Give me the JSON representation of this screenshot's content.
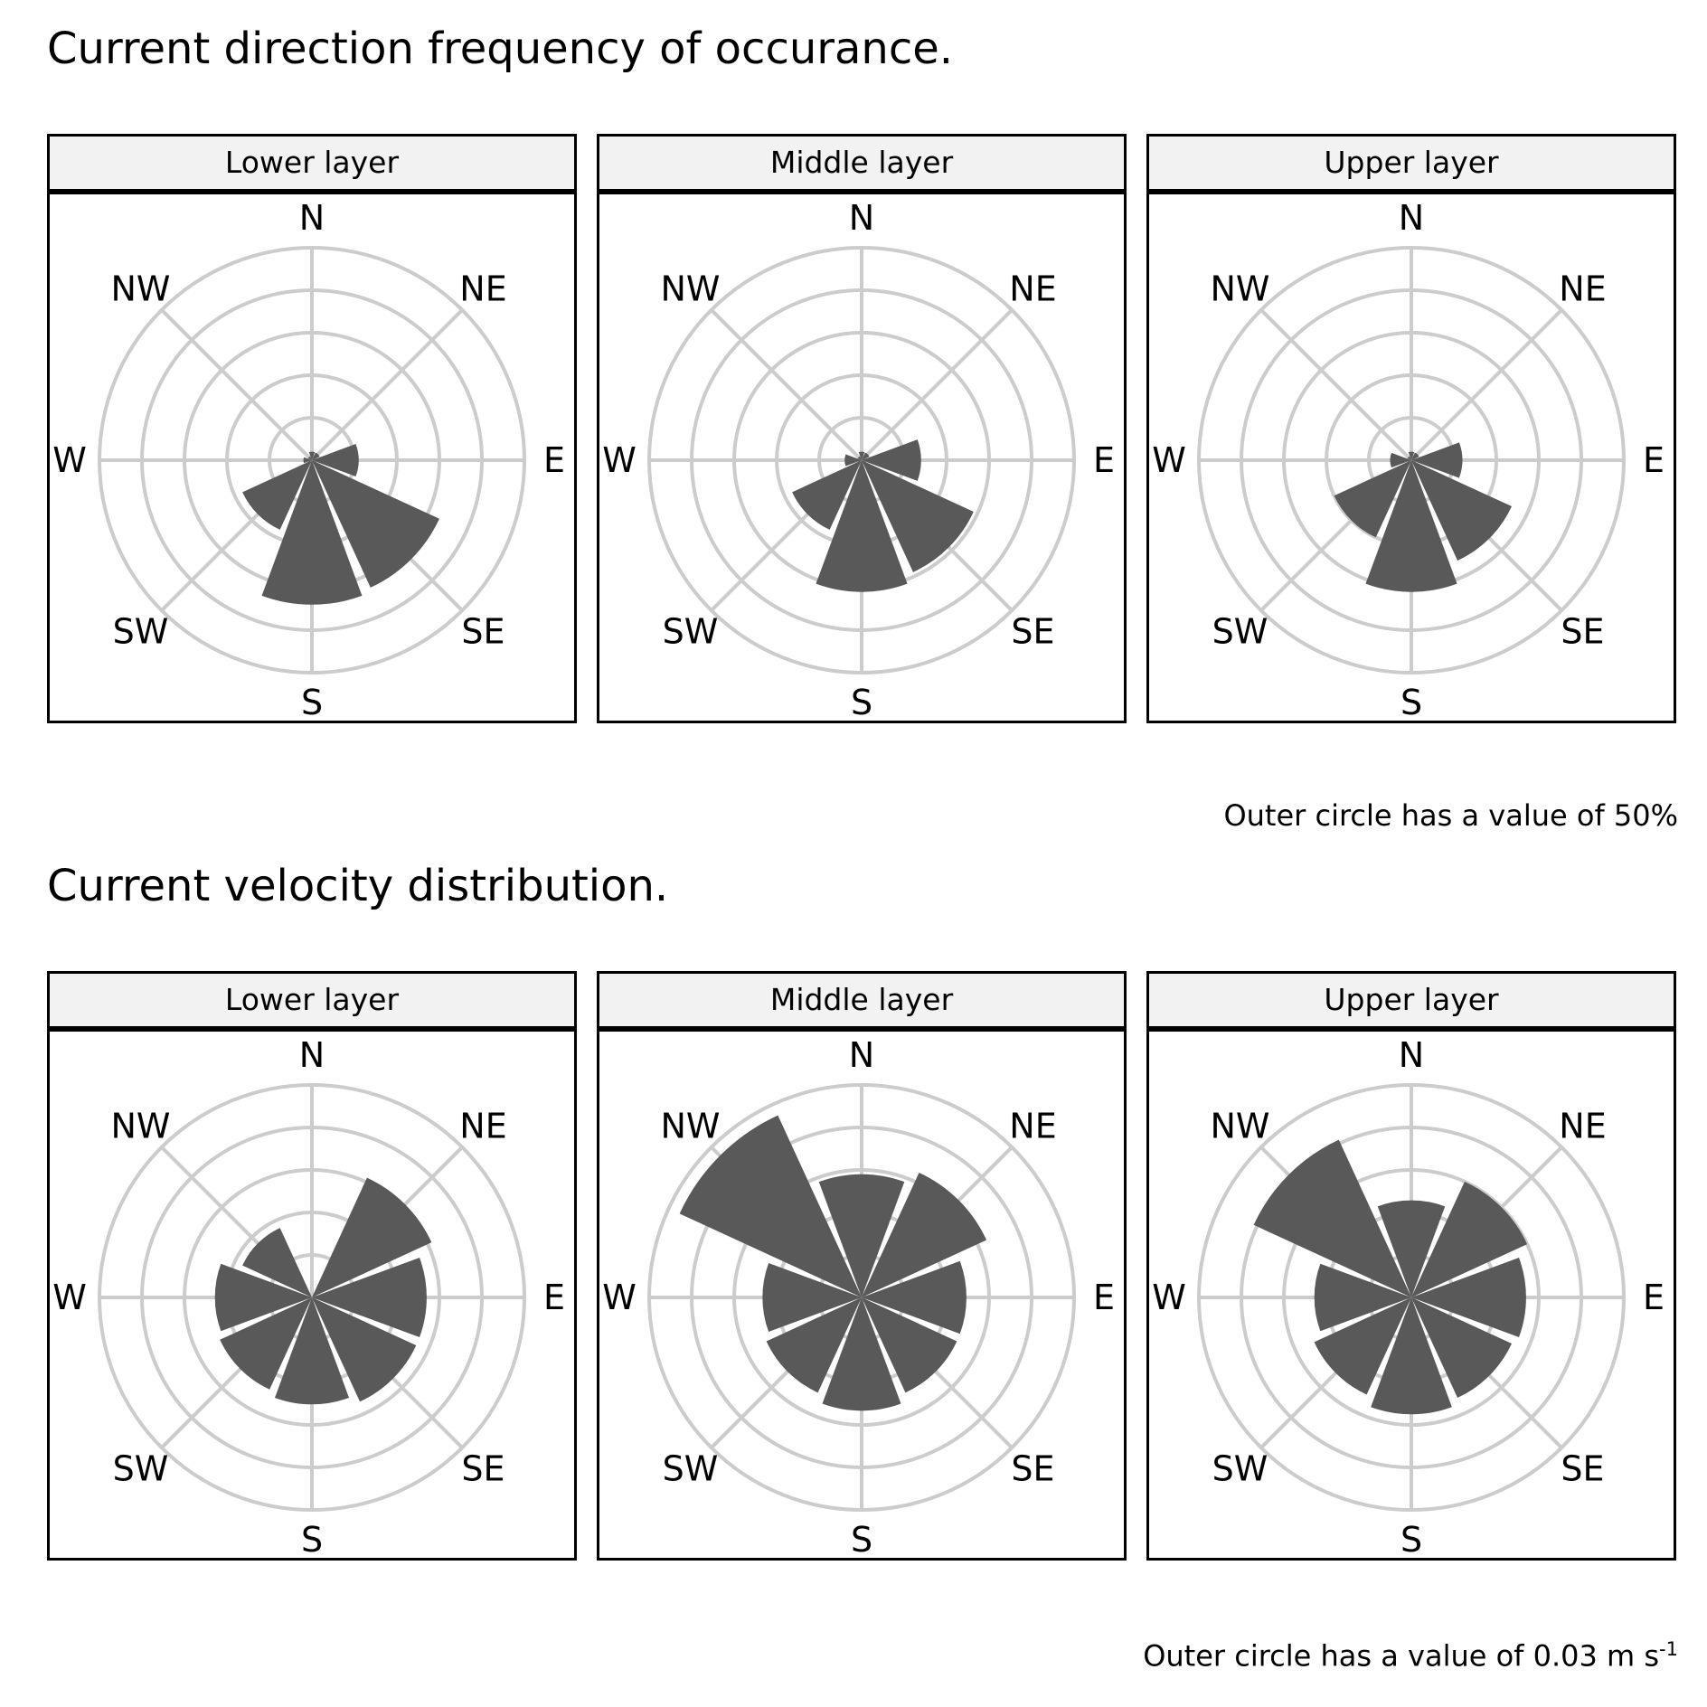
{
  "frequency": {
    "title": "Current direction frequency of occurance.",
    "footnote": "Outer circle has a value of 50%"
  },
  "velocity": {
    "title": "Current velocity distribution.",
    "footnote_main": "Outer circle has a value of 0.03 m s",
    "footnote_sup": "-1"
  },
  "compass_labels": [
    "N",
    "NE",
    "E",
    "SE",
    "S",
    "SW",
    "W",
    "NW"
  ],
  "colors": {
    "bar": "#595959",
    "grid": "#cccccc",
    "strip_bg": "#f2f2f2"
  },
  "chart_data": [
    {
      "type": "polar-bar",
      "section": "frequency",
      "title": "Lower layer",
      "directions": [
        "N",
        "NE",
        "E",
        "SE",
        "S",
        "SW",
        "W",
        "NW"
      ],
      "values": [
        2,
        2,
        11,
        33,
        34,
        18,
        2,
        1
      ],
      "rmax": 50,
      "grid_rings": 5
    },
    {
      "type": "polar-bar",
      "section": "frequency",
      "title": "Middle layer",
      "directions": [
        "N",
        "NE",
        "E",
        "SE",
        "S",
        "SW",
        "W",
        "NW"
      ],
      "values": [
        2,
        2,
        14,
        29,
        31,
        18,
        4,
        1
      ],
      "rmax": 50,
      "grid_rings": 5
    },
    {
      "type": "polar-bar",
      "section": "frequency",
      "title": "Upper layer",
      "directions": [
        "N",
        "NE",
        "E",
        "SE",
        "S",
        "SW",
        "W",
        "NW"
      ],
      "values": [
        2,
        2,
        12,
        26,
        31,
        20,
        5,
        1
      ],
      "rmax": 50,
      "grid_rings": 5
    },
    {
      "type": "polar-bar",
      "section": "velocity",
      "title": "Lower layer",
      "directions": [
        "N",
        "NE",
        "E",
        "SE",
        "S",
        "SW",
        "W",
        "NW"
      ],
      "values": [
        0,
        0.0186,
        0.0162,
        0.0162,
        0.0151,
        0.0143,
        0.0137,
        0.0108
      ],
      "rmax": 0.03,
      "grid_rings": 5
    },
    {
      "type": "polar-bar",
      "section": "velocity",
      "title": "Middle layer",
      "directions": [
        "N",
        "NE",
        "E",
        "SE",
        "S",
        "SW",
        "W",
        "NW"
      ],
      "values": [
        0.0174,
        0.0194,
        0.0148,
        0.0148,
        0.016,
        0.0148,
        0.014,
        0.0283
      ],
      "rmax": 0.03,
      "grid_rings": 5
    },
    {
      "type": "polar-bar",
      "section": "velocity",
      "title": "Upper layer",
      "directions": [
        "N",
        "NE",
        "E",
        "SE",
        "S",
        "SW",
        "W",
        "NW"
      ],
      "values": [
        0.0137,
        0.018,
        0.0162,
        0.0156,
        0.0165,
        0.0151,
        0.0137,
        0.0245
      ],
      "rmax": 0.03,
      "grid_rings": 5
    }
  ]
}
